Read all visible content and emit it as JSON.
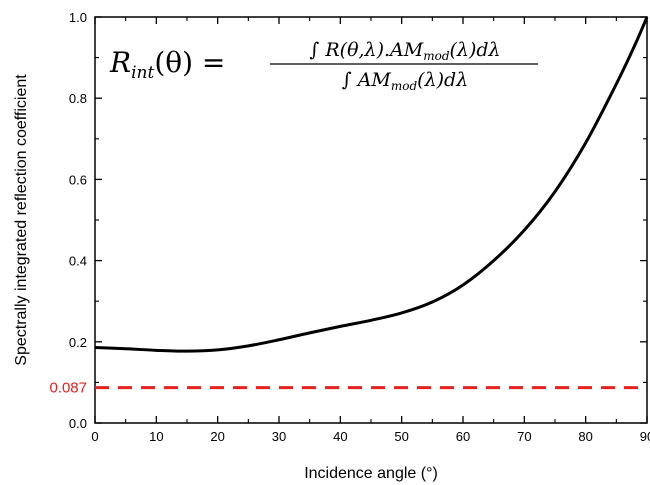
{
  "chart_data": {
    "type": "line",
    "xlabel": "Incidence angle (°)",
    "ylabel": "Spectrally integrated reflection coefficient",
    "xlim": [
      0,
      90
    ],
    "ylim": [
      0,
      1.0
    ],
    "x_ticks": [
      0,
      10,
      20,
      30,
      40,
      50,
      60,
      70,
      80,
      90
    ],
    "y_ticks": [
      0.0,
      0.2,
      0.4,
      0.6,
      0.8,
      1.0
    ],
    "y_tick_labels": [
      "0.0",
      "0.2",
      "0.4",
      "0.6",
      "0.8",
      "1.0"
    ],
    "grid": false,
    "series": [
      {
        "color": "#000000",
        "style": "solid",
        "x": [
          0,
          5,
          10,
          15,
          20,
          25,
          30,
          35,
          40,
          45,
          50,
          55,
          60,
          65,
          70,
          75,
          80,
          85,
          88,
          90
        ],
        "y": [
          0.186,
          0.183,
          0.179,
          0.177,
          0.18,
          0.19,
          0.205,
          0.222,
          0.238,
          0.253,
          0.271,
          0.298,
          0.34,
          0.4,
          0.475,
          0.57,
          0.69,
          0.835,
          0.93,
          1.0
        ]
      }
    ],
    "reference_line": {
      "y": 0.087,
      "label": "0.087",
      "color": "#e8201e",
      "style": "dashed"
    },
    "annotation": {
      "formula_lhs": "R",
      "formula_lhs_sub": "int",
      "formula_lhs_arg": "(θ) =",
      "numerator": "∫ R(θ,λ).AM",
      "numerator_sub": "mod",
      "numerator_tail": "(λ)dλ",
      "denominator": "∫ AM",
      "denominator_sub": "mod",
      "denominator_tail": "(λ)dλ"
    }
  }
}
